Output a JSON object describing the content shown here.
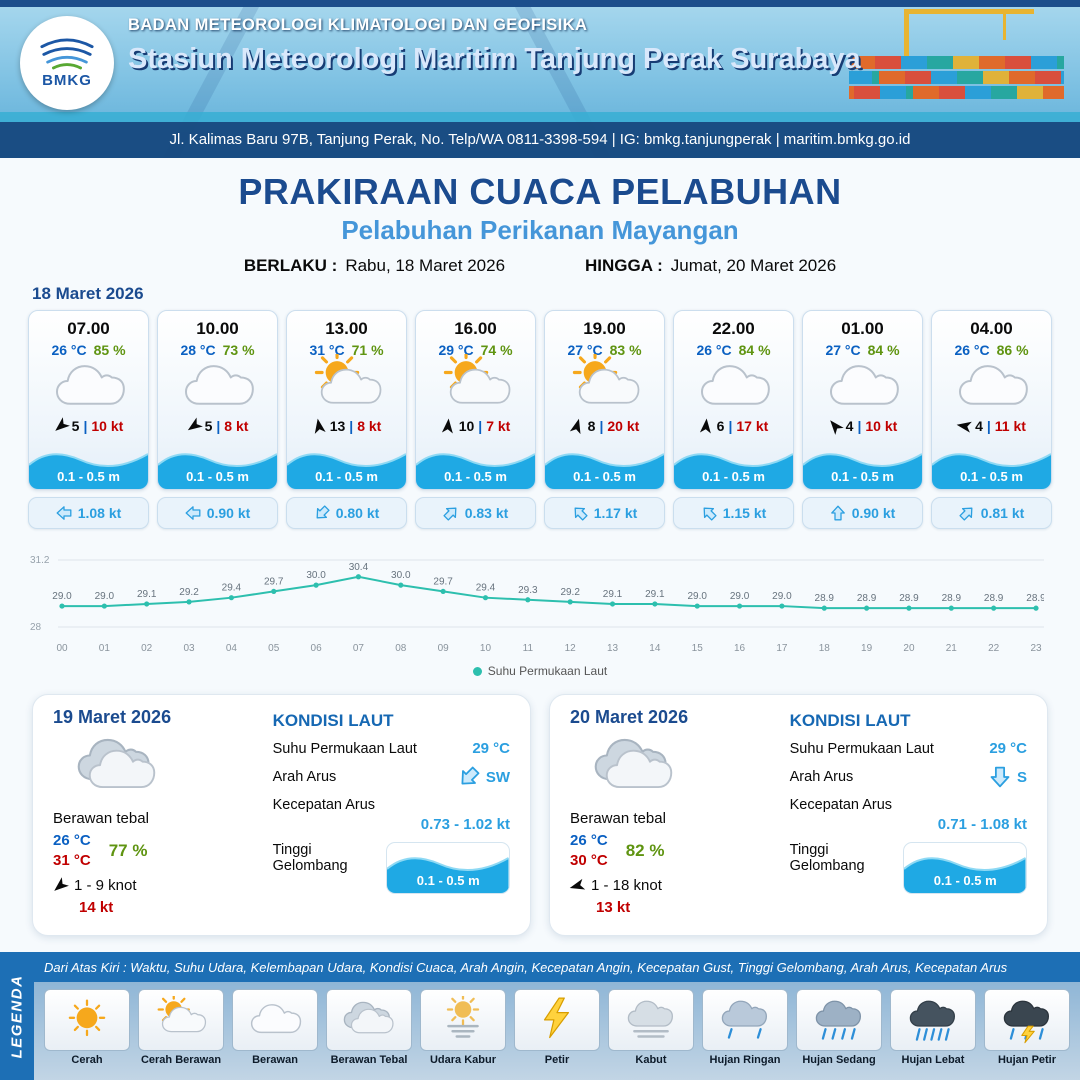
{
  "header": {
    "logo": "BMKG",
    "agency": "BADAN METEOROLOGI KLIMATOLOGI DAN GEOFISIKA",
    "station": "Stasiun Meteorologi Maritim Tanjung Perak Surabaya",
    "address": "Jl. Kalimas Baru 97B, Tanjung Perak, No. Telp/WA 0811-3398-594 | IG: bmkg.tanjungperak | maritim.bmkg.go.id"
  },
  "title": {
    "main": "PRAKIRAAN CUACA PELABUHAN",
    "subtitle": "Pelabuhan Perikanan Mayangan",
    "berlaku_label": "BERLAKU :",
    "berlaku_value": "Rabu, 18 Maret 2026",
    "hingga_label": "HINGGA :",
    "hingga_value": "Jumat, 20 Maret 2026"
  },
  "day1": {
    "date": "18 Maret 2026",
    "wind_sep": "|",
    "cards": [
      {
        "time": "07.00",
        "temp": "26 °C",
        "humidity": "85 %",
        "icon": "berawan",
        "wind_rot": 230,
        "wind": "5",
        "gust": "10 kt",
        "wave": "0.1 - 0.5 m",
        "current_rot": 270,
        "current": "1.08 kt"
      },
      {
        "time": "10.00",
        "temp": "28 °C",
        "humidity": "73 %",
        "icon": "berawan",
        "wind_rot": 235,
        "wind": "5",
        "gust": "8 kt",
        "wave": "0.1 - 0.5 m",
        "current_rot": 270,
        "current": "0.90 kt"
      },
      {
        "time": "13.00",
        "temp": "31 °C",
        "humidity": "71 %",
        "icon": "cerah-berawan",
        "wind_rot": 350,
        "wind": "13",
        "gust": "8 kt",
        "wave": "0.1 - 0.5 m",
        "current_rot": 225,
        "current": "0.80 kt"
      },
      {
        "time": "16.00",
        "temp": "29 °C",
        "humidity": "74 %",
        "icon": "cerah-berawan",
        "wind_rot": 5,
        "wind": "10",
        "gust": "7 kt",
        "wave": "0.1 - 0.5 m",
        "current_rot": 45,
        "current": "0.83 kt"
      },
      {
        "time": "19.00",
        "temp": "27 °C",
        "humidity": "83 %",
        "icon": "cerah-berawan",
        "wind_rot": 15,
        "wind": "8",
        "gust": "20 kt",
        "wave": "0.1 - 0.5 m",
        "current_rot": 315,
        "current": "1.17 kt"
      },
      {
        "time": "22.00",
        "temp": "26 °C",
        "humidity": "84 %",
        "icon": "berawan",
        "wind_rot": 5,
        "wind": "6",
        "gust": "17 kt",
        "wave": "0.1 - 0.5 m",
        "current_rot": 315,
        "current": "1.15 kt"
      },
      {
        "time": "01.00",
        "temp": "27 °C",
        "humidity": "84 %",
        "icon": "berawan",
        "wind_rot": 320,
        "wind": "4",
        "gust": "10 kt",
        "wave": "0.1 - 0.5 m",
        "current_rot": 0,
        "current": "0.90 kt"
      },
      {
        "time": "04.00",
        "temp": "26 °C",
        "humidity": "86 %",
        "icon": "berawan",
        "wind_rot": 280,
        "wind": "4",
        "gust": "11 kt",
        "wave": "0.1 - 0.5 m",
        "current_rot": 45,
        "current": "0.81 kt"
      }
    ]
  },
  "chart_data": {
    "type": "line",
    "series_name": "Suhu Permukaan Laut",
    "x": [
      "00",
      "01",
      "02",
      "03",
      "04",
      "05",
      "06",
      "07",
      "08",
      "09",
      "10",
      "11",
      "12",
      "13",
      "14",
      "15",
      "16",
      "17",
      "18",
      "19",
      "20",
      "21",
      "22",
      "23"
    ],
    "values": [
      29.0,
      29.0,
      29.1,
      29.2,
      29.4,
      29.7,
      30.0,
      30.4,
      30.0,
      29.7,
      29.4,
      29.3,
      29.2,
      29.1,
      29.1,
      29.0,
      29.0,
      29.0,
      28.9,
      28.9,
      28.9,
      28.9,
      28.9,
      28.9
    ],
    "ylim": [
      28,
      31.2
    ],
    "yticks": [
      "31.2",
      "28"
    ],
    "line_color": "#2dbfae",
    "legend_position": "bottom",
    "grid": true
  },
  "sea_labels": {
    "heading": "KONDISI LAUT",
    "sst": "Suhu Permukaan Laut",
    "dir": "Arah Arus",
    "speed": "Kecepatan Arus",
    "wave": "Tinggi Gelombang"
  },
  "days": [
    {
      "date": "19 Maret 2026",
      "icon": "berawan-tebal",
      "condition": "Berawan tebal",
      "temp_min": "26 °C",
      "temp_max": "31 °C",
      "humidity": "77 %",
      "wind_rot": 230,
      "wind": "1 - 9 knot",
      "gust": "14 kt",
      "sst": "29 °C",
      "dir": "SW",
      "dir_rot": 225,
      "speed": "0.73 - 1.02 kt",
      "wave": "0.1 - 0.5 m"
    },
    {
      "date": "20 Maret 2026",
      "icon": "berawan-tebal",
      "condition": "Berawan tebal",
      "temp_min": "26 °C",
      "temp_max": "30 °C",
      "humidity": "82 %",
      "wind_rot": 255,
      "wind": "1 - 18 knot",
      "gust": "13 kt",
      "sst": "29 °C",
      "dir": "S",
      "dir_rot": 180,
      "speed": "0.71 - 1.08 kt",
      "wave": "0.1 - 0.5 m"
    }
  ],
  "legend": {
    "side_label": "LEGENDA",
    "description": "Dari Atas Kiri : Waktu, Suhu Udara, Kelembapan Udara, Kondisi Cuaca, Arah Angin, Kecepatan Angin, Kecepatan Gust, Tinggi Gelombang, Arah Arus, Kecepatan Arus",
    "items": [
      {
        "label": "Cerah",
        "icon": "cerah"
      },
      {
        "label": "Cerah Berawan",
        "icon": "cerah-berawan"
      },
      {
        "label": "Berawan",
        "icon": "berawan"
      },
      {
        "label": "Berawan Tebal",
        "icon": "berawan-tebal"
      },
      {
        "label": "Udara Kabur",
        "icon": "udara-kabur"
      },
      {
        "label": "Petir",
        "icon": "petir"
      },
      {
        "label": "Kabut",
        "icon": "kabut"
      },
      {
        "label": "Hujan Ringan",
        "icon": "hujan-ringan"
      },
      {
        "label": "Hujan Sedang",
        "icon": "hujan-sedang"
      },
      {
        "label": "Hujan Lebat",
        "icon": "hujan-lebat"
      },
      {
        "label": "Hujan Petir",
        "icon": "hujan-petir"
      }
    ]
  },
  "colors": {
    "accent_navy": "#1b4b8f",
    "accent_blue": "#4596d9",
    "temp_blue": "#0a60c2",
    "humidity_green": "#5f9411",
    "gust_red": "#c00000",
    "wave_blue": "#1fa9e4",
    "current_blue": "#2b9fe0",
    "chart_teal": "#2dbfae"
  }
}
